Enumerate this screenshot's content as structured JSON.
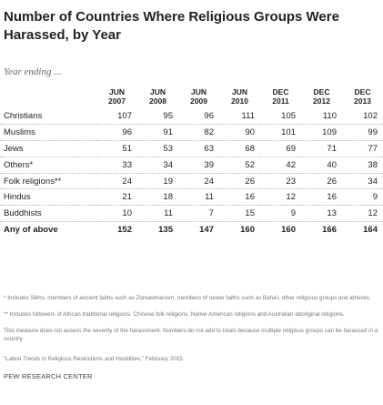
{
  "title": "Number of Countries Where Religious Groups Were Harassed, by Year",
  "subtitle": "Year ending ...",
  "chart_data": {
    "type": "table",
    "columns": [
      {
        "month": "JUN",
        "year": "2007"
      },
      {
        "month": "JUN",
        "year": "2008"
      },
      {
        "month": "JUN",
        "year": "2009"
      },
      {
        "month": "JUN",
        "year": "2010"
      },
      {
        "month": "DEC",
        "year": "2011"
      },
      {
        "month": "DEC",
        "year": "2012"
      },
      {
        "month": "DEC",
        "year": "2013"
      }
    ],
    "rows": [
      {
        "label": "Christians",
        "values": [
          "107",
          "95",
          "96",
          "111",
          "105",
          "110",
          "102"
        ]
      },
      {
        "label": "Muslims",
        "values": [
          "96",
          "91",
          "82",
          "90",
          "101",
          "109",
          "99"
        ]
      },
      {
        "label": "Jews",
        "values": [
          "51",
          "53",
          "63",
          "68",
          "69",
          "71",
          "77"
        ]
      },
      {
        "label": "Others*",
        "values": [
          "33",
          "34",
          "39",
          "52",
          "42",
          "40",
          "38"
        ]
      },
      {
        "label": "Folk religions**",
        "values": [
          "24",
          "19",
          "24",
          "26",
          "23",
          "26",
          "34"
        ]
      },
      {
        "label": "Hindus",
        "values": [
          "21",
          "18",
          "11",
          "16",
          "12",
          "16",
          "9"
        ]
      },
      {
        "label": "Buddhists",
        "values": [
          "10",
          "11",
          "7",
          "15",
          "9",
          "13",
          "12"
        ]
      },
      {
        "label": "Any of above",
        "values": [
          "152",
          "135",
          "147",
          "160",
          "160",
          "166",
          "164"
        ],
        "total": true
      }
    ]
  },
  "notes": {
    "note1": "* Includes Sikhs, members of ancient faiths such as Zoroastrianism, members of newer faiths such as Baha'i, other religious groups and atheists.",
    "note2": "** Includes followers of African traditional religions, Chinese folk religions, Native American religions and Australian aboriginal religions.",
    "note3": "This measure does not assess the severity of the harassment. Numbers do not add to totals because multiple religious groups can be harassed in a country."
  },
  "source": {
    "title": "“Latest Trends in Religious Restrictions and Hostilities,”",
    "date": " February 2015"
  },
  "org": "PEW RESEARCH CENTER"
}
